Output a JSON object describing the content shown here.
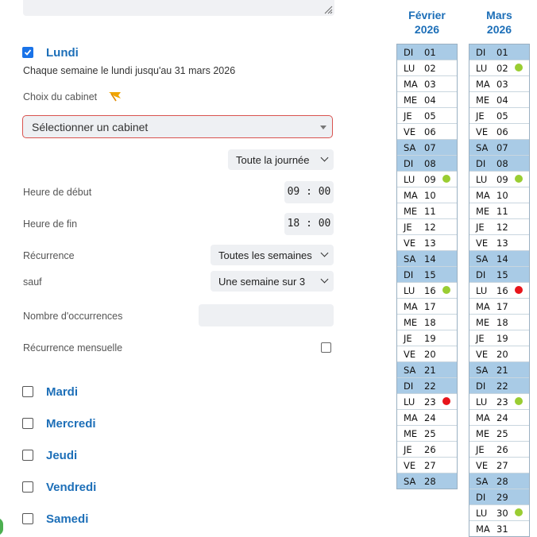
{
  "monday": {
    "checked": true,
    "title": "Lundi",
    "summary": "Chaque semaine le lundi jusqu'au 31 mars 2026",
    "cabinet_label": "Choix du cabinet",
    "cabinet_placeholder": "Sélectionner un cabinet",
    "period": "Toute la journée",
    "start_label": "Heure de début",
    "start_time": "09 : 00",
    "end_label": "Heure de fin",
    "end_time": "18 : 00",
    "recurrence_label": "Récurrence",
    "recurrence_value": "Toutes les semaines",
    "except_label": "sauf",
    "except_value": "Une semaine sur 3",
    "occurrences_label": "Nombre d'occurrences",
    "monthly_label": "Récurrence mensuelle"
  },
  "other_days": [
    {
      "label": "Mardi"
    },
    {
      "label": "Mercredi"
    },
    {
      "label": "Jeudi"
    },
    {
      "label": "Vendredi"
    },
    {
      "label": "Samedi"
    }
  ],
  "colors": {
    "accent": "#1d6fb8",
    "weekend": "#a9cbe6",
    "available": "#9acd32",
    "conflict": "#e8151b"
  },
  "calendars": [
    {
      "month": "Février",
      "year": "2026",
      "days": [
        {
          "d": "DI",
          "n": "01",
          "we": true
        },
        {
          "d": "LU",
          "n": "02"
        },
        {
          "d": "MA",
          "n": "03"
        },
        {
          "d": "ME",
          "n": "04"
        },
        {
          "d": "JE",
          "n": "05"
        },
        {
          "d": "VE",
          "n": "06"
        },
        {
          "d": "SA",
          "n": "07",
          "we": true
        },
        {
          "d": "DI",
          "n": "08",
          "we": true
        },
        {
          "d": "LU",
          "n": "09",
          "dot": "green"
        },
        {
          "d": "MA",
          "n": "10"
        },
        {
          "d": "ME",
          "n": "11"
        },
        {
          "d": "JE",
          "n": "12"
        },
        {
          "d": "VE",
          "n": "13"
        },
        {
          "d": "SA",
          "n": "14",
          "we": true
        },
        {
          "d": "DI",
          "n": "15",
          "we": true
        },
        {
          "d": "LU",
          "n": "16",
          "dot": "green"
        },
        {
          "d": "MA",
          "n": "17"
        },
        {
          "d": "ME",
          "n": "18"
        },
        {
          "d": "JE",
          "n": "19"
        },
        {
          "d": "VE",
          "n": "20"
        },
        {
          "d": "SA",
          "n": "21",
          "we": true
        },
        {
          "d": "DI",
          "n": "22",
          "we": true
        },
        {
          "d": "LU",
          "n": "23",
          "dot": "red"
        },
        {
          "d": "MA",
          "n": "24"
        },
        {
          "d": "ME",
          "n": "25"
        },
        {
          "d": "JE",
          "n": "26"
        },
        {
          "d": "VE",
          "n": "27"
        },
        {
          "d": "SA",
          "n": "28",
          "we": true
        }
      ]
    },
    {
      "month": "Mars",
      "year": "2026",
      "days": [
        {
          "d": "DI",
          "n": "01",
          "we": true
        },
        {
          "d": "LU",
          "n": "02",
          "dot": "green"
        },
        {
          "d": "MA",
          "n": "03"
        },
        {
          "d": "ME",
          "n": "04"
        },
        {
          "d": "JE",
          "n": "05"
        },
        {
          "d": "VE",
          "n": "06"
        },
        {
          "d": "SA",
          "n": "07",
          "we": true
        },
        {
          "d": "DI",
          "n": "08",
          "we": true
        },
        {
          "d": "LU",
          "n": "09",
          "dot": "green"
        },
        {
          "d": "MA",
          "n": "10"
        },
        {
          "d": "ME",
          "n": "11"
        },
        {
          "d": "JE",
          "n": "12"
        },
        {
          "d": "VE",
          "n": "13"
        },
        {
          "d": "SA",
          "n": "14",
          "we": true
        },
        {
          "d": "DI",
          "n": "15",
          "we": true
        },
        {
          "d": "LU",
          "n": "16",
          "dot": "red"
        },
        {
          "d": "MA",
          "n": "17"
        },
        {
          "d": "ME",
          "n": "18"
        },
        {
          "d": "JE",
          "n": "19"
        },
        {
          "d": "VE",
          "n": "20"
        },
        {
          "d": "SA",
          "n": "21",
          "we": true
        },
        {
          "d": "DI",
          "n": "22",
          "we": true
        },
        {
          "d": "LU",
          "n": "23",
          "dot": "green"
        },
        {
          "d": "MA",
          "n": "24"
        },
        {
          "d": "ME",
          "n": "25"
        },
        {
          "d": "JE",
          "n": "26"
        },
        {
          "d": "VE",
          "n": "27"
        },
        {
          "d": "SA",
          "n": "28",
          "we": true
        },
        {
          "d": "DI",
          "n": "29",
          "we": true
        },
        {
          "d": "LU",
          "n": "30",
          "dot": "green"
        },
        {
          "d": "MA",
          "n": "31"
        }
      ]
    }
  ]
}
